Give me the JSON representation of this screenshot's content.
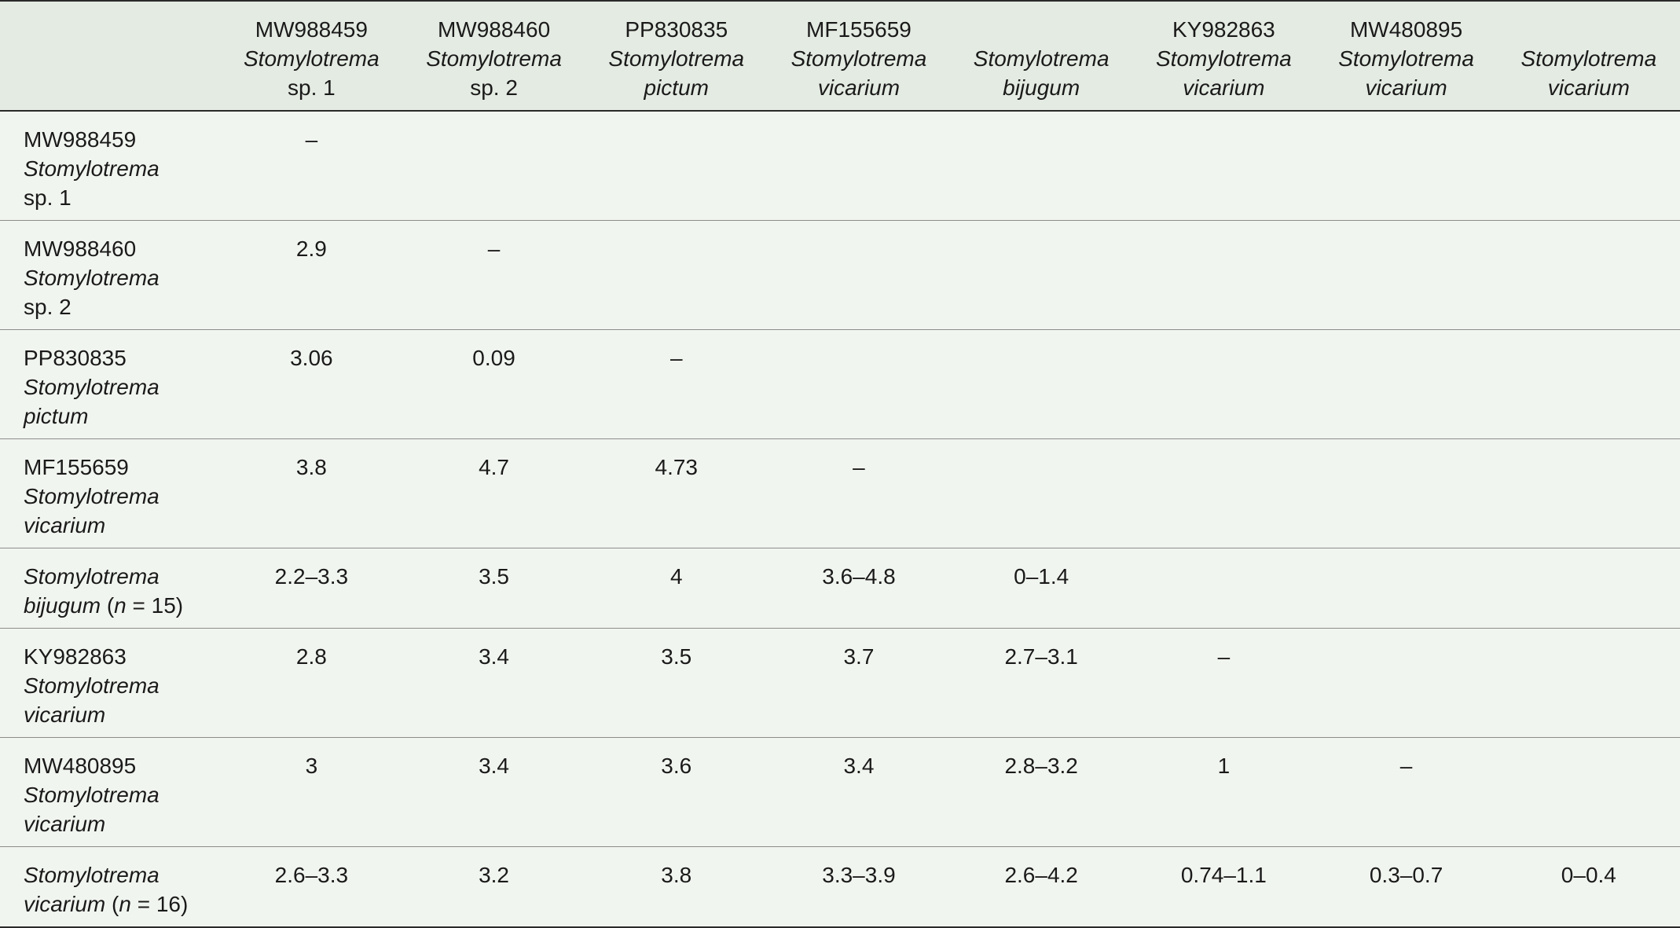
{
  "columns": [
    {
      "accession": "",
      "genus": "",
      "species": "",
      "species_italic": false
    },
    {
      "accession": "MW988459",
      "genus": "Stomylotrema",
      "species": "sp. 1",
      "species_italic": false
    },
    {
      "accession": "MW988460",
      "genus": "Stomylotrema",
      "species": "sp. 2",
      "species_italic": false
    },
    {
      "accession": "PP830835",
      "genus": "Stomylotrema",
      "species": "pictum",
      "species_italic": true
    },
    {
      "accession": "MF155659",
      "genus": "Stomylotrema",
      "species": "vicarium",
      "species_italic": true
    },
    {
      "accession": "",
      "genus": "Stomylotrema",
      "species": "bijugum",
      "species_italic": true
    },
    {
      "accession": "KY982863",
      "genus": "Stomylotrema",
      "species": "vicarium",
      "species_italic": true
    },
    {
      "accession": "MW480895",
      "genus": "Stomylotrema",
      "species": "vicarium",
      "species_italic": true
    },
    {
      "accession": "",
      "genus": "Stomylotrema",
      "species": "vicarium",
      "species_italic": true
    }
  ],
  "rows": [
    {
      "label": {
        "line1": "MW988459",
        "line2": "Stomylotrema",
        "line3": "sp. 1"
      },
      "values": [
        "–",
        "",
        "",
        "",
        "",
        "",
        "",
        ""
      ]
    },
    {
      "label": {
        "line1": "MW988460",
        "line2": "Stomylotrema",
        "line3": "sp. 2"
      },
      "values": [
        "2.9",
        "–",
        "",
        "",
        "",
        "",
        "",
        ""
      ]
    },
    {
      "label": {
        "line1": "PP830835",
        "line2": "Stomylotrema",
        "line3": "pictum"
      },
      "values": [
        "3.06",
        "0.09",
        "–",
        "",
        "",
        "",
        "",
        ""
      ]
    },
    {
      "label": {
        "line1": "MF155659",
        "line2": "Stomylotrema",
        "line3": "vicarium"
      },
      "values": [
        "3.8",
        "4.7",
        "4.73",
        "–",
        "",
        "",
        "",
        ""
      ]
    },
    {
      "label": {
        "line1": "Stomylotrema",
        "line2_italic": "bijugum",
        "line2_rest": " (",
        "n": "n",
        "eq": " = 15)"
      },
      "values": [
        "2.2–3.3",
        "3.5",
        "4",
        "3.6–4.8",
        "0–1.4",
        "",
        "",
        ""
      ]
    },
    {
      "label": {
        "line1": "KY982863",
        "line2": "Stomylotrema",
        "line3": "vicarium"
      },
      "values": [
        "2.8",
        "3.4",
        "3.5",
        "3.7",
        "2.7–3.1",
        "–",
        "",
        ""
      ]
    },
    {
      "label": {
        "line1": "MW480895",
        "line2": "Stomylotrema",
        "line3": "vicarium"
      },
      "values": [
        "3",
        "3.4",
        "3.6",
        "3.4",
        "2.8–3.2",
        "1",
        "–",
        ""
      ]
    },
    {
      "label": {
        "line1": "Stomylotrema",
        "line2_italic": "vicarium",
        "line2_rest": " (",
        "n": "n",
        "eq": " = 16)"
      },
      "values": [
        "2.6–3.3",
        "3.2",
        "3.8",
        "3.3–3.9",
        "2.6–4.2",
        "0.74–1.1",
        "0.3–0.7",
        "0–0.4"
      ]
    }
  ]
}
